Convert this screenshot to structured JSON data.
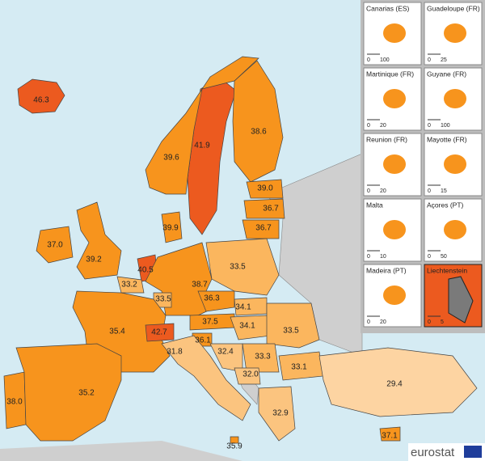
{
  "map": {
    "regions": [
      {
        "label": "46.3",
        "color": "#ec5a1f"
      },
      {
        "label": "41.9",
        "color": "#ec5a1f"
      },
      {
        "label": "38.6",
        "color": "#f7941d"
      },
      {
        "label": "39.6",
        "color": "#f7941d"
      },
      {
        "label": "39.0",
        "color": "#f7941d"
      },
      {
        "label": "36.7",
        "color": "#f7941d"
      },
      {
        "label": "36.7",
        "color": "#f7941d"
      },
      {
        "label": "39.9",
        "color": "#f7941d"
      },
      {
        "label": "37.0",
        "color": "#f7941d"
      },
      {
        "label": "39.2",
        "color": "#f7941d"
      },
      {
        "label": "40.5",
        "color": "#ec5a1f"
      },
      {
        "label": "33.2",
        "color": "#fbb65e"
      },
      {
        "label": "38.7",
        "color": "#f7941d"
      },
      {
        "label": "33.5",
        "color": "#fbb65e"
      },
      {
        "label": "33.5",
        "color": "#fbb65e"
      },
      {
        "label": "36.3",
        "color": "#f7941d"
      },
      {
        "label": "34.1",
        "color": "#fbb65e"
      },
      {
        "label": "35.4",
        "color": "#f7941d"
      },
      {
        "label": "37.5",
        "color": "#f7941d"
      },
      {
        "label": "34.1",
        "color": "#fbb65e"
      },
      {
        "label": "33.5",
        "color": "#fbb65e"
      },
      {
        "label": "42.7",
        "color": "#ec5a1f"
      },
      {
        "label": "36.1",
        "color": "#f7941d"
      },
      {
        "label": "31.8",
        "color": "#fbc47f"
      },
      {
        "label": "32.4",
        "color": "#fbc47f"
      },
      {
        "label": "33.3",
        "color": "#fbb65e"
      },
      {
        "label": "33.1",
        "color": "#fbb65e"
      },
      {
        "label": "32.0",
        "color": "#fbc47f"
      },
      {
        "label": "29.4",
        "color": "#fdd4a2"
      },
      {
        "label": "38.0",
        "color": "#f7941d"
      },
      {
        "label": "35.2",
        "color": "#f7941d"
      },
      {
        "label": "32.9",
        "color": "#fbc47f"
      },
      {
        "label": "35.9",
        "color": "#f7941d"
      },
      {
        "label": "37.1",
        "color": "#f7941d"
      }
    ]
  },
  "insets": [
    {
      "title": "Canarias (ES)",
      "scale": [
        "0",
        "100"
      ]
    },
    {
      "title": "Guadeloupe (FR)",
      "scale": [
        "0",
        "25"
      ]
    },
    {
      "title": "Martinique (FR)",
      "scale": [
        "0",
        "20"
      ]
    },
    {
      "title": "Guyane (FR)",
      "scale": [
        "0",
        "100"
      ]
    },
    {
      "title": "Reunion (FR)",
      "scale": [
        "0",
        "20"
      ]
    },
    {
      "title": "Mayotte (FR)",
      "scale": [
        "0",
        "15"
      ]
    },
    {
      "title": "Malta",
      "scale": [
        "0",
        "10"
      ]
    },
    {
      "title": "Açores (PT)",
      "scale": [
        "0",
        "50"
      ]
    },
    {
      "title": "Madeira (PT)",
      "scale": [
        "0",
        "20"
      ]
    },
    {
      "title": "Liechtenstein",
      "scale": [
        "0",
        "5"
      ]
    }
  ],
  "logo": "eurostat"
}
